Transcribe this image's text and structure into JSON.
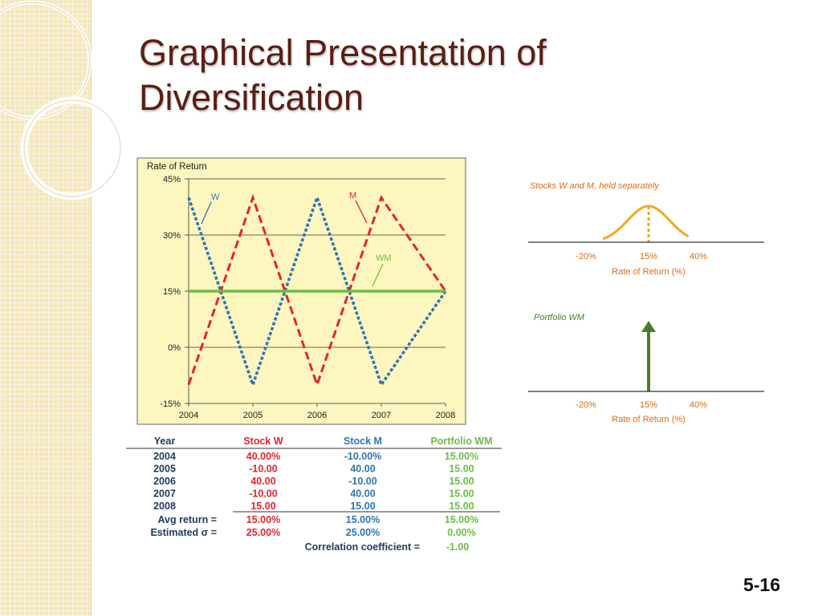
{
  "slide": {
    "title_line1": "Graphical Presentation of",
    "title_line2": "Diversification",
    "number": "5-16"
  },
  "colors": {
    "stock_w": "#2e75b6",
    "stock_m": "#e8232a",
    "portfolio": "#6cbd45",
    "normal_curve": "#f5a623",
    "arrow": "#4a7d2a",
    "title": "#5a1e12",
    "caption_orange": "#e06a16"
  },
  "chart_data": [
    {
      "type": "line",
      "ylabel": "Rate of Return",
      "x": [
        "2004",
        "2005",
        "2006",
        "2007",
        "2008"
      ],
      "y_ticks": [
        "45%",
        "30%",
        "15%",
        "0%",
        "-15%"
      ],
      "ylim": [
        -15,
        45
      ],
      "grid": true,
      "series": [
        {
          "name": "W",
          "values": [
            40,
            -10,
            40,
            -10,
            15
          ],
          "style": "dotted"
        },
        {
          "name": "M",
          "values": [
            -10,
            40,
            -10,
            40,
            15
          ],
          "style": "dashed"
        },
        {
          "name": "WM",
          "values": [
            15,
            15,
            15,
            15,
            15
          ],
          "style": "solid"
        }
      ]
    },
    {
      "type": "area",
      "title": "Stocks W and M, held separately",
      "xlabel": "Rate of Return (%)",
      "x_ticks": [
        "-20%",
        "15%",
        "40%"
      ],
      "mean": 15,
      "std": 25
    },
    {
      "type": "bar",
      "title": "Portfolio WM",
      "xlabel": "Rate of Return (%)",
      "x_ticks": [
        "-20%",
        "15%",
        "40%"
      ],
      "value": 15,
      "std": 0
    }
  ],
  "table": {
    "headers": [
      "Year",
      "Stock W",
      "Stock M",
      "Portfolio WM"
    ],
    "rows": [
      [
        "2004",
        "40.00%",
        "-10.00%",
        "15.00%"
      ],
      [
        "2005",
        "-10.00",
        "40.00",
        "15.00"
      ],
      [
        "2006",
        "40.00",
        "-10.00",
        "15.00"
      ],
      [
        "2007",
        "-10.00",
        "40.00",
        "15.00"
      ],
      [
        "2008",
        "15.00",
        "15.00",
        "15.00"
      ]
    ],
    "avg": [
      "Avg return =",
      "15.00%",
      "15.00%",
      "15.00%"
    ],
    "sd": [
      "Estimated σ =",
      "25.00%",
      "25.00%",
      "0.00%"
    ],
    "corr_label": "Correlation coefficient =",
    "corr_value": "-1.00"
  }
}
